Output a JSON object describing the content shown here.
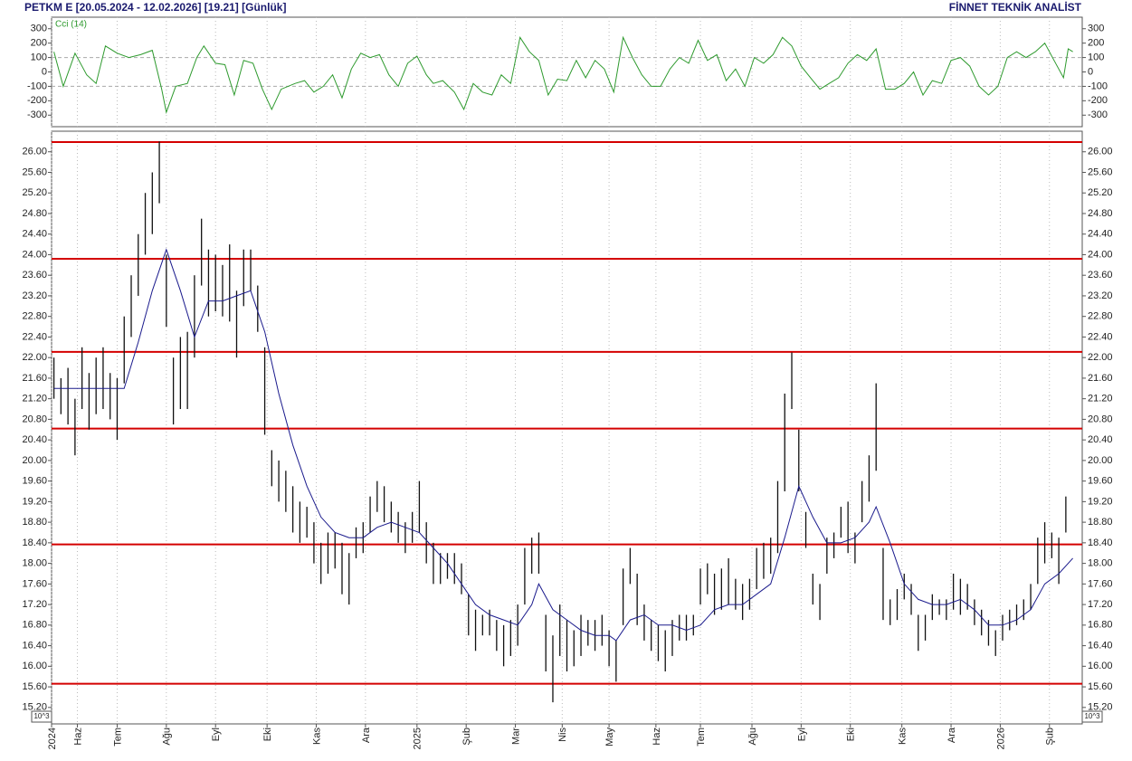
{
  "header": {
    "left": "PETKM E  [20.05.2024 - 12.02.2026]  [19.21]  [Günlük]",
    "right": "FİNNET TEKNİK ANALİST"
  },
  "chart_data": [
    {
      "type": "line",
      "label": "Cci (14)",
      "color": "#2e9a2e",
      "xlim": [
        0,
        440
      ],
      "ylim": [
        -380,
        380
      ],
      "yticks": [
        300,
        200,
        100,
        0,
        -100,
        -200,
        -300
      ],
      "gridlines": [
        100,
        -100
      ],
      "x": [
        1,
        5,
        10,
        15,
        19,
        23,
        28,
        33,
        38,
        43,
        47,
        49,
        53,
        58,
        62,
        65,
        70,
        74,
        78,
        82,
        86,
        90,
        94,
        98,
        104,
        108,
        112,
        116,
        120,
        124,
        128,
        132,
        136,
        140,
        144,
        148,
        152,
        156,
        160,
        163,
        167,
        172,
        176,
        180,
        184,
        188,
        192,
        196,
        200,
        204,
        208,
        212,
        216,
        220,
        224,
        228,
        232,
        236,
        240,
        244,
        248,
        252,
        256,
        260,
        264,
        268,
        272,
        276,
        280,
        284,
        288,
        292,
        296,
        300,
        304,
        308,
        312,
        316,
        320,
        324,
        328,
        332,
        336,
        340,
        344,
        348,
        352,
        356,
        360,
        364,
        368,
        372,
        376,
        380,
        384,
        388,
        392,
        396,
        400,
        404,
        408,
        412,
        416,
        420,
        424,
        428,
        432,
        434,
        436
      ],
      "values": [
        140,
        -100,
        130,
        -20,
        -80,
        180,
        130,
        100,
        120,
        150,
        -120,
        -280,
        -100,
        -80,
        100,
        180,
        60,
        50,
        -160,
        80,
        60,
        -120,
        -260,
        -120,
        -80,
        -60,
        -140,
        -100,
        -20,
        -180,
        20,
        130,
        100,
        120,
        -20,
        -100,
        60,
        110,
        -20,
        -80,
        -60,
        -140,
        -260,
        -80,
        -140,
        -160,
        -20,
        -80,
        240,
        140,
        80,
        -160,
        -50,
        -60,
        80,
        -40,
        80,
        20,
        -140,
        240,
        100,
        -20,
        -100,
        -100,
        20,
        100,
        60,
        220,
        80,
        120,
        -60,
        20,
        -100,
        100,
        60,
        120,
        240,
        180,
        40,
        -40,
        -120,
        -80,
        -40,
        60,
        120,
        80,
        160,
        -120,
        -120,
        -80,
        0,
        -160,
        -60,
        -80,
        80,
        100,
        40,
        -100,
        -160,
        -100,
        100,
        140,
        100,
        140,
        200,
        80,
        -40,
        160,
        140
      ]
    },
    {
      "type": "ohlc",
      "bar_color": "#111111",
      "ma_color": "#1a1a8c",
      "hline_color": "#d40000",
      "scale_label": "10^3",
      "xlim": [
        0,
        440
      ],
      "ylim": [
        14.88,
        26.4
      ],
      "yticks": [
        {
          "value": 15.2,
          "label": "15.20"
        },
        {
          "value": 15.6,
          "label": "15.60"
        },
        {
          "value": 16,
          "label": "16.00"
        },
        {
          "value": 16.4,
          "label": "16.40"
        },
        {
          "value": 16.8,
          "label": "16.80"
        },
        {
          "value": 17.2,
          "label": "17.20"
        },
        {
          "value": 17.6,
          "label": "17.60"
        },
        {
          "value": 18,
          "label": "18.00"
        },
        {
          "value": 18.4,
          "label": "18.40"
        },
        {
          "value": 18.8,
          "label": "18.80"
        },
        {
          "value": 19.2,
          "label": "19.20"
        },
        {
          "value": 19.6,
          "label": "19.60"
        },
        {
          "value": 20,
          "label": "20.00"
        },
        {
          "value": 20.4,
          "label": "20.40"
        },
        {
          "value": 20.8,
          "label": "20.80"
        },
        {
          "value": 21.2,
          "label": "21.20"
        },
        {
          "value": 21.6,
          "label": "21.60"
        },
        {
          "value": 22,
          "label": "22.00"
        },
        {
          "value": 22.4,
          "label": "22.40"
        },
        {
          "value": 22.8,
          "label": "22.80"
        },
        {
          "value": 23.2,
          "label": "23.20"
        },
        {
          "value": 23.6,
          "label": "23.60"
        },
        {
          "value": 24,
          "label": "24.00"
        },
        {
          "value": 24.4,
          "label": "24.40"
        },
        {
          "value": 24.8,
          "label": "24.80"
        },
        {
          "value": 25.2,
          "label": "25.20"
        },
        {
          "value": 25.6,
          "label": "25.60"
        },
        {
          "value": 26,
          "label": "26.00"
        }
      ],
      "xticks": [
        {
          "value": 0,
          "label": "2024"
        },
        {
          "value": 11,
          "label": "Haz"
        },
        {
          "value": 28,
          "label": "Tem"
        },
        {
          "value": 49,
          "label": "Ağu"
        },
        {
          "value": 70,
          "label": "Eyl"
        },
        {
          "value": 92,
          "label": "Eki"
        },
        {
          "value": 113,
          "label": "Kas"
        },
        {
          "value": 134,
          "label": "Ara"
        },
        {
          "value": 156,
          "label": "2025"
        },
        {
          "value": 177,
          "label": "Şub"
        },
        {
          "value": 198,
          "label": "Mar"
        },
        {
          "value": 218,
          "label": "Nis"
        },
        {
          "value": 238,
          "label": "May"
        },
        {
          "value": 258,
          "label": "Haz"
        },
        {
          "value": 277,
          "label": "Tem"
        },
        {
          "value": 299,
          "label": "Ağu"
        },
        {
          "value": 320,
          "label": "Eyl"
        },
        {
          "value": 341,
          "label": "Eki"
        },
        {
          "value": 363,
          "label": "Kas"
        },
        {
          "value": 384,
          "label": "Ara"
        },
        {
          "value": 405,
          "label": "2026"
        },
        {
          "value": 426,
          "label": "Şub"
        }
      ],
      "hlines": [
        26.19,
        23.92,
        22.11,
        20.62,
        18.37,
        15.66
      ],
      "x": [
        1,
        4,
        7,
        10,
        13,
        16,
        19,
        22,
        25,
        28,
        31,
        34,
        37,
        40,
        43,
        46,
        49,
        52,
        55,
        58,
        61,
        64,
        67,
        70,
        73,
        76,
        79,
        82,
        85,
        88,
        91,
        94,
        97,
        100,
        103,
        106,
        109,
        112,
        115,
        118,
        121,
        124,
        127,
        130,
        133,
        136,
        139,
        142,
        145,
        148,
        151,
        154,
        157,
        160,
        163,
        166,
        169,
        172,
        175,
        178,
        181,
        184,
        187,
        190,
        193,
        196,
        199,
        202,
        205,
        208,
        211,
        214,
        217,
        220,
        223,
        226,
        229,
        232,
        235,
        238,
        241,
        244,
        247,
        250,
        253,
        256,
        259,
        262,
        265,
        268,
        271,
        274,
        277,
        280,
        283,
        286,
        289,
        292,
        295,
        298,
        301,
        304,
        307,
        310,
        313,
        316,
        319,
        322,
        325,
        328,
        331,
        334,
        337,
        340,
        343,
        346,
        349,
        352,
        355,
        358,
        361,
        364,
        367,
        370,
        373,
        376,
        379,
        382,
        385,
        388,
        391,
        394,
        397,
        400,
        403,
        406,
        409,
        412,
        415,
        418,
        421,
        424,
        427,
        430,
        433
      ],
      "low": [
        21.2,
        20.9,
        20.7,
        20.1,
        21.0,
        20.6,
        20.9,
        21.0,
        20.8,
        20.4,
        21.5,
        22.4,
        23.2,
        24.0,
        24.4,
        25.0,
        22.6,
        20.7,
        21.0,
        21.0,
        22.0,
        23.4,
        22.8,
        22.9,
        22.8,
        22.7,
        22.0,
        23.0,
        23.3,
        22.5,
        20.5,
        19.5,
        19.2,
        19.0,
        18.6,
        18.4,
        18.5,
        18.0,
        17.6,
        17.8,
        17.9,
        17.4,
        17.2,
        18.1,
        18.2,
        18.6,
        19.0,
        18.8,
        18.6,
        18.4,
        18.2,
        18.4,
        18.6,
        18.0,
        17.6,
        17.6,
        17.7,
        17.6,
        17.4,
        16.6,
        16.3,
        16.6,
        16.6,
        16.3,
        16.0,
        16.2,
        16.4,
        17.2,
        17.8,
        17.8,
        15.9,
        15.3,
        16.2,
        15.9,
        16.0,
        16.2,
        16.4,
        16.3,
        16.4,
        16.0,
        15.7,
        16.8,
        17.6,
        16.8,
        16.5,
        16.3,
        16.1,
        15.9,
        16.2,
        16.5,
        16.5,
        16.6,
        17.2,
        17.4,
        17.0,
        17.1,
        17.2,
        17.1,
        16.9,
        17.1,
        17.5,
        17.7,
        17.8,
        18.2,
        19.4,
        21.0,
        19.4,
        18.3,
        17.2,
        16.9,
        17.8,
        18.1,
        18.5,
        18.2,
        18.0,
        18.8,
        19.2,
        19.8,
        16.9,
        16.8,
        16.9,
        17.3,
        17.0,
        16.3,
        16.5,
        16.9,
        17.0,
        16.9,
        17.1,
        17.0,
        17.1,
        16.8,
        16.6,
        16.4,
        16.2,
        16.5,
        16.7,
        16.8,
        16.9,
        17.1,
        17.6,
        18.0,
        18.1,
        17.6,
        18.6
      ],
      "high": [
        22.0,
        21.6,
        21.8,
        21.2,
        22.2,
        21.7,
        22.0,
        22.2,
        21.7,
        21.6,
        22.8,
        23.6,
        24.4,
        25.2,
        25.6,
        26.2,
        24.0,
        22.0,
        22.4,
        22.5,
        23.6,
        24.7,
        24.1,
        24.0,
        23.8,
        24.2,
        23.3,
        24.1,
        24.1,
        23.4,
        22.2,
        20.2,
        20.0,
        19.8,
        19.5,
        19.2,
        19.1,
        18.8,
        18.4,
        18.6,
        18.6,
        18.4,
        18.2,
        18.7,
        18.8,
        19.3,
        19.6,
        19.5,
        19.2,
        19.0,
        18.8,
        19.0,
        19.6,
        18.8,
        18.4,
        18.2,
        18.2,
        18.2,
        18.0,
        17.4,
        17.1,
        17.0,
        17.1,
        16.9,
        16.8,
        16.9,
        17.2,
        18.3,
        18.5,
        18.6,
        17.0,
        16.6,
        17.2,
        16.9,
        16.7,
        17.0,
        16.9,
        16.9,
        17.0,
        16.7,
        16.5,
        17.9,
        18.3,
        17.8,
        17.2,
        16.9,
        16.8,
        16.7,
        16.9,
        17.0,
        17.0,
        17.0,
        17.9,
        18.0,
        17.8,
        17.9,
        18.1,
        17.7,
        17.6,
        17.7,
        18.3,
        18.4,
        18.5,
        19.6,
        21.3,
        22.1,
        20.6,
        19.0,
        17.8,
        17.6,
        18.5,
        18.6,
        19.1,
        19.2,
        18.6,
        19.6,
        20.1,
        21.5,
        18.3,
        17.3,
        17.5,
        17.8,
        17.6,
        17.0,
        17.0,
        17.4,
        17.3,
        17.3,
        17.8,
        17.7,
        17.6,
        17.3,
        17.1,
        16.9,
        16.7,
        17.0,
        17.1,
        17.2,
        17.3,
        17.6,
        18.5,
        18.8,
        18.6,
        18.5,
        19.3
      ],
      "ma_x": [
        1,
        13,
        25,
        31,
        37,
        43,
        49,
        55,
        61,
        67,
        73,
        79,
        85,
        91,
        97,
        103,
        109,
        115,
        121,
        127,
        133,
        139,
        145,
        151,
        157,
        163,
        169,
        175,
        181,
        187,
        193,
        199,
        205,
        208,
        214,
        220,
        226,
        232,
        238,
        241,
        247,
        253,
        259,
        265,
        271,
        277,
        283,
        289,
        295,
        301,
        307,
        313,
        319,
        325,
        331,
        337,
        343,
        349,
        352,
        358,
        364,
        370,
        376,
        382,
        388,
        394,
        400,
        406,
        412,
        418,
        424,
        430,
        436
      ],
      "ma": [
        21.4,
        21.4,
        21.4,
        21.4,
        22.3,
        23.3,
        24.1,
        23.3,
        22.4,
        23.1,
        23.1,
        23.2,
        23.3,
        22.5,
        21.3,
        20.3,
        19.5,
        18.9,
        18.6,
        18.5,
        18.5,
        18.7,
        18.8,
        18.7,
        18.6,
        18.3,
        18.0,
        17.6,
        17.2,
        17.0,
        16.9,
        16.8,
        17.2,
        17.6,
        17.1,
        16.9,
        16.7,
        16.6,
        16.6,
        16.5,
        16.9,
        17.0,
        16.8,
        16.8,
        16.7,
        16.8,
        17.1,
        17.2,
        17.2,
        17.4,
        17.6,
        18.5,
        19.5,
        18.9,
        18.4,
        18.4,
        18.5,
        18.8,
        19.1,
        18.4,
        17.6,
        17.3,
        17.2,
        17.2,
        17.3,
        17.1,
        16.8,
        16.8,
        16.9,
        17.1,
        17.6,
        17.8,
        18.1
      ]
    }
  ]
}
